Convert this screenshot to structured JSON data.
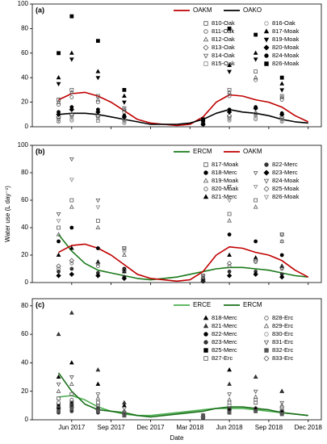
{
  "chart_data": [
    {
      "type": "scatter",
      "panel_label": "(a)",
      "ylim": [
        0,
        100
      ],
      "yticks": [
        0,
        20,
        40,
        60,
        80,
        100
      ],
      "legend": "upper right",
      "x": [
        "2017-05",
        "2017-06",
        "2017-07",
        "2017-08",
        "2017-09",
        "2017-10",
        "2017-11",
        "2017-12",
        "2018-01",
        "2018-02",
        "2018-03",
        "2018-04",
        "2018-05",
        "2018-06",
        "2018-07",
        "2018-08",
        "2018-09",
        "2018-10",
        "2018-11",
        "2018-12"
      ],
      "marker_x": [
        "2017-05",
        "2017-06",
        "2017-08",
        "2017-10",
        "2018-04",
        "2018-06",
        "2018-08",
        "2018-10"
      ],
      "series": [
        {
          "name": "OAKM",
          "kind": "line",
          "color": "#c00000",
          "values": [
            22,
            27,
            28,
            25,
            20,
            13,
            6,
            3,
            2,
            1,
            2,
            8,
            20,
            26,
            25,
            22,
            20,
            16,
            9,
            4
          ]
        },
        {
          "name": "OAKO",
          "kind": "line",
          "color": "#000000",
          "values": [
            10,
            11,
            11,
            10,
            8,
            6,
            4,
            2,
            2,
            2,
            3,
            6,
            11,
            14,
            12,
            11,
            9,
            6,
            4,
            3
          ]
        },
        {
          "name": "810-Oak",
          "marker": "square-open",
          "color": "#555555",
          "values": [
            22,
            30,
            25,
            15,
            3,
            30,
            45,
            25
          ]
        },
        {
          "name": "811-Oak",
          "marker": "circle-open",
          "color": "#555555",
          "values": [
            18,
            24,
            20,
            12,
            2,
            25,
            38,
            22
          ]
        },
        {
          "name": "812-Oak",
          "marker": "triangle-open",
          "color": "#555555",
          "values": [
            20,
            28,
            22,
            14,
            3,
            28,
            40,
            24
          ]
        },
        {
          "name": "813-Oak",
          "marker": "diamond-open",
          "color": "#555555",
          "values": [
            8,
            10,
            9,
            6,
            2,
            9,
            11,
            8
          ]
        },
        {
          "name": "814-Oak",
          "marker": "tridown-open",
          "color": "#555555",
          "values": [
            6,
            8,
            7,
            5,
            2,
            7,
            9,
            6
          ]
        },
        {
          "name": "815-Oak",
          "marker": "square-open",
          "color": "#888888",
          "values": [
            5,
            6,
            5,
            4,
            1,
            6,
            7,
            5
          ]
        },
        {
          "name": "816-Oak",
          "marker": "circle-open",
          "color": "#888888",
          "values": [
            4,
            5,
            5,
            3,
            1,
            5,
            6,
            4
          ]
        },
        {
          "name": "817-Moak",
          "marker": "triangle",
          "color": "#000000",
          "values": [
            40,
            60,
            45,
            25,
            5,
            50,
            60,
            35
          ]
        },
        {
          "name": "819-Moak",
          "marker": "tridown",
          "color": "#000000",
          "values": [
            35,
            55,
            40,
            20,
            4,
            45,
            55,
            30
          ]
        },
        {
          "name": "820-Moak",
          "marker": "diamond",
          "color": "#000000",
          "values": [
            10,
            14,
            12,
            8,
            2,
            12,
            15,
            10
          ]
        },
        {
          "name": "824-Moak",
          "marker": "circle",
          "color": "#000000",
          "values": [
            12,
            16,
            14,
            9,
            2,
            14,
            16,
            11
          ]
        },
        {
          "name": "826-Moak",
          "marker": "square",
          "color": "#000000",
          "values": [
            60,
            90,
            70,
            30,
            6,
            80,
            75,
            40
          ]
        }
      ]
    },
    {
      "type": "scatter",
      "panel_label": "(b)",
      "ylim": [
        0,
        100
      ],
      "yticks": [
        0,
        20,
        40,
        60,
        80,
        100
      ],
      "legend": "upper right",
      "y_label": "Water use (L day⁻¹)",
      "x": [
        "2017-05",
        "2017-06",
        "2017-07",
        "2017-08",
        "2017-09",
        "2017-10",
        "2017-11",
        "2017-12",
        "2018-01",
        "2018-02",
        "2018-03",
        "2018-04",
        "2018-05",
        "2018-06",
        "2018-07",
        "2018-08",
        "2018-09",
        "2018-10",
        "2018-11",
        "2018-12"
      ],
      "marker_x": [
        "2017-05",
        "2017-06",
        "2017-08",
        "2017-10",
        "2018-04",
        "2018-06",
        "2018-08",
        "2018-10"
      ],
      "series": [
        {
          "name": "ERCM",
          "kind": "line",
          "color": "#1a7a1a",
          "values": [
            35,
            23,
            14,
            9,
            7,
            5,
            3,
            2,
            3,
            4,
            6,
            8,
            10,
            11,
            11,
            10,
            9,
            7,
            5,
            4
          ]
        },
        {
          "name": "OAKM",
          "kind": "line",
          "color": "#c00000",
          "values": [
            22,
            27,
            28,
            25,
            20,
            13,
            6,
            3,
            2,
            1,
            2,
            8,
            20,
            26,
            25,
            22,
            20,
            16,
            9,
            4
          ]
        },
        {
          "name": "817-Moak",
          "marker": "square-open",
          "color": "#555555",
          "values": [
            40,
            60,
            45,
            25,
            5,
            50,
            60,
            35
          ]
        },
        {
          "name": "818-Merc",
          "marker": "circle",
          "color": "#000000",
          "values": [
            30,
            40,
            25,
            10,
            3,
            35,
            30,
            20
          ]
        },
        {
          "name": "819-Moak",
          "marker": "triangle-open",
          "color": "#555555",
          "values": [
            35,
            55,
            40,
            20,
            4,
            45,
            55,
            30
          ]
        },
        {
          "name": "820-Moak",
          "marker": "circle-open",
          "color": "#555555",
          "values": [
            10,
            14,
            12,
            8,
            2,
            12,
            15,
            10
          ]
        },
        {
          "name": "821-Merc",
          "marker": "triangle",
          "color": "#000000",
          "values": [
            20,
            25,
            15,
            8,
            3,
            20,
            18,
            12
          ]
        },
        {
          "name": "822-Merc",
          "marker": "circle",
          "color": "#333333",
          "values": [
            8,
            10,
            7,
            4,
            2,
            8,
            8,
            6
          ]
        },
        {
          "name": "823-Merc",
          "marker": "diamond",
          "color": "#000000",
          "values": [
            5,
            6,
            5,
            3,
            1,
            5,
            6,
            4
          ]
        },
        {
          "name": "824-Moak",
          "marker": "tridown-open",
          "color": "#555555",
          "values": [
            50,
            90,
            60,
            25,
            5,
            70,
            80,
            35
          ]
        },
        {
          "name": "825-Moak",
          "marker": "diamond-open",
          "color": "#555555",
          "values": [
            12,
            16,
            14,
            9,
            2,
            14,
            16,
            11
          ]
        },
        {
          "name": "826-Moak",
          "marker": "tridown-open",
          "color": "#888888",
          "values": [
            45,
            75,
            55,
            22,
            4,
            60,
            70,
            30
          ]
        }
      ]
    },
    {
      "type": "scatter",
      "panel_label": "(c)",
      "ylim": [
        0,
        85
      ],
      "yticks": [
        0,
        20,
        40,
        60,
        80
      ],
      "legend": "upper right",
      "x_label": "Date",
      "xlim": [
        "2017-03",
        "2019-01"
      ],
      "xticks": [
        {
          "value": "2017-06",
          "label": "Jun 2017"
        },
        {
          "value": "2017-09",
          "label": "Sep 2017"
        },
        {
          "value": "2017-12",
          "label": "Dec 2017"
        },
        {
          "value": "2018-03",
          "label": "Mar 2018"
        },
        {
          "value": "2018-06",
          "label": "Jun 2018"
        },
        {
          "value": "2018-09",
          "label": "Sep 2018"
        },
        {
          "value": "2018-12",
          "label": "Dec 2018"
        }
      ],
      "x": [
        "2017-05",
        "2017-06",
        "2017-07",
        "2017-08",
        "2017-09",
        "2017-10",
        "2017-11",
        "2017-12",
        "2018-01",
        "2018-02",
        "2018-03",
        "2018-04",
        "2018-05",
        "2018-06",
        "2018-07",
        "2018-08",
        "2018-09",
        "2018-10",
        "2018-11",
        "2018-12"
      ],
      "marker_x": [
        "2017-05",
        "2017-06",
        "2017-08",
        "2017-10",
        "2018-04",
        "2018-06",
        "2018-08",
        "2018-10"
      ],
      "series": [
        {
          "name": "ERCE",
          "kind": "line",
          "color": "#4caf50",
          "values": [
            16,
            17,
            14,
            9,
            6,
            4,
            3,
            3,
            4,
            5,
            6,
            7,
            8,
            8,
            8,
            7,
            6,
            5,
            4,
            3
          ]
        },
        {
          "name": "ERCM",
          "kind": "line",
          "color": "#1a6e1a",
          "values": [
            33,
            20,
            11,
            7,
            6,
            5,
            3,
            2,
            3,
            4,
            5,
            6,
            8,
            9,
            9,
            8,
            7,
            5,
            4,
            3
          ]
        },
        {
          "name": "818-Merc",
          "marker": "triangle",
          "color": "#000000",
          "values": [
            30,
            40,
            25,
            10,
            3,
            35,
            30,
            20
          ]
        },
        {
          "name": "821-Merc",
          "marker": "triangle",
          "color": "#333333",
          "values": [
            60,
            75,
            35,
            12,
            3,
            25,
            30,
            20
          ]
        },
        {
          "name": "822-Merc",
          "marker": "circle",
          "color": "#000000",
          "values": [
            8,
            10,
            7,
            4,
            2,
            8,
            8,
            6
          ]
        },
        {
          "name": "823-Merc",
          "marker": "circle",
          "color": "#333333",
          "values": [
            5,
            6,
            5,
            3,
            1,
            5,
            6,
            4
          ]
        },
        {
          "name": "825-Merc",
          "marker": "square",
          "color": "#000000",
          "values": [
            10,
            12,
            8,
            4,
            2,
            6,
            7,
            5
          ]
        },
        {
          "name": "827-Erc",
          "marker": "square-open",
          "color": "#555555",
          "values": [
            15,
            18,
            12,
            5,
            3,
            10,
            12,
            8
          ]
        },
        {
          "name": "828-Erc",
          "marker": "circle-open",
          "color": "#555555",
          "values": [
            12,
            14,
            10,
            5,
            3,
            12,
            14,
            9
          ]
        },
        {
          "name": "829-Erc",
          "marker": "triangle-open",
          "color": "#555555",
          "values": [
            20,
            25,
            15,
            6,
            3,
            14,
            16,
            10
          ]
        },
        {
          "name": "830-Erc",
          "marker": "circle-open",
          "color": "#888888",
          "values": [
            10,
            12,
            9,
            4,
            2,
            10,
            12,
            8
          ]
        },
        {
          "name": "831-Erc",
          "marker": "tridown-open",
          "color": "#555555",
          "values": [
            25,
            30,
            18,
            8,
            3,
            18,
            20,
            12
          ]
        },
        {
          "name": "832-Erc",
          "marker": "square",
          "color": "#555555",
          "values": [
            6,
            8,
            6,
            3,
            2,
            5,
            6,
            4
          ]
        },
        {
          "name": "833-Erc",
          "marker": "diamond-open",
          "color": "#555555",
          "values": [
            8,
            9,
            7,
            4,
            2,
            7,
            8,
            6
          ]
        }
      ]
    }
  ]
}
